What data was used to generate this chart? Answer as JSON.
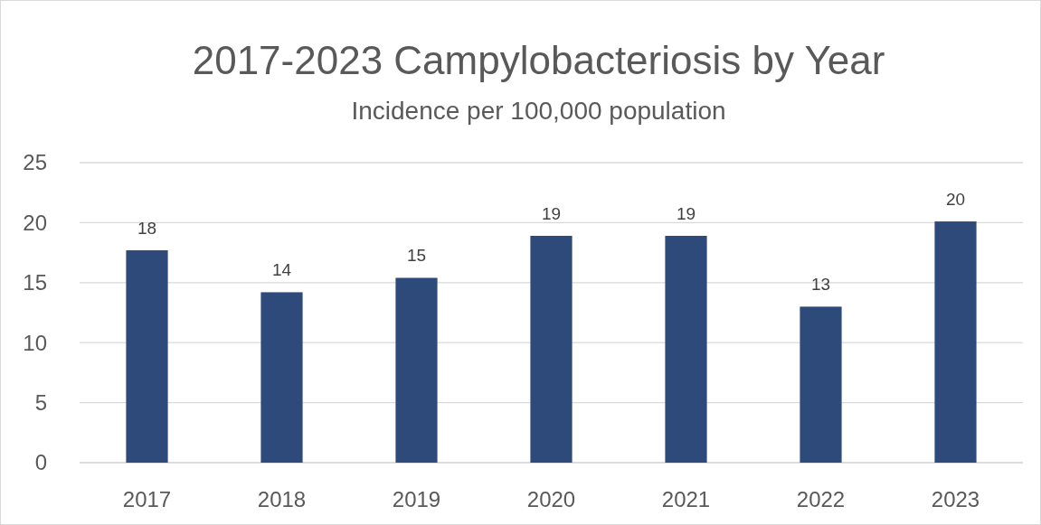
{
  "chart_data": {
    "type": "bar",
    "title": "2017-2023 Campylobacteriosis by Year",
    "subtitle": "Incidence per 100,000 population",
    "categories": [
      "2017",
      "2018",
      "2019",
      "2020",
      "2021",
      "2022",
      "2023"
    ],
    "values": [
      17.7,
      14.2,
      15.4,
      18.9,
      18.9,
      13.0,
      20.1
    ],
    "value_labels": [
      "18",
      "14",
      "15",
      "19",
      "19",
      "13",
      "20"
    ],
    "color": "#2e4a7a",
    "ylim": [
      0,
      25
    ],
    "yticks": [
      0,
      5,
      10,
      15,
      20,
      25
    ],
    "grid": "y"
  }
}
